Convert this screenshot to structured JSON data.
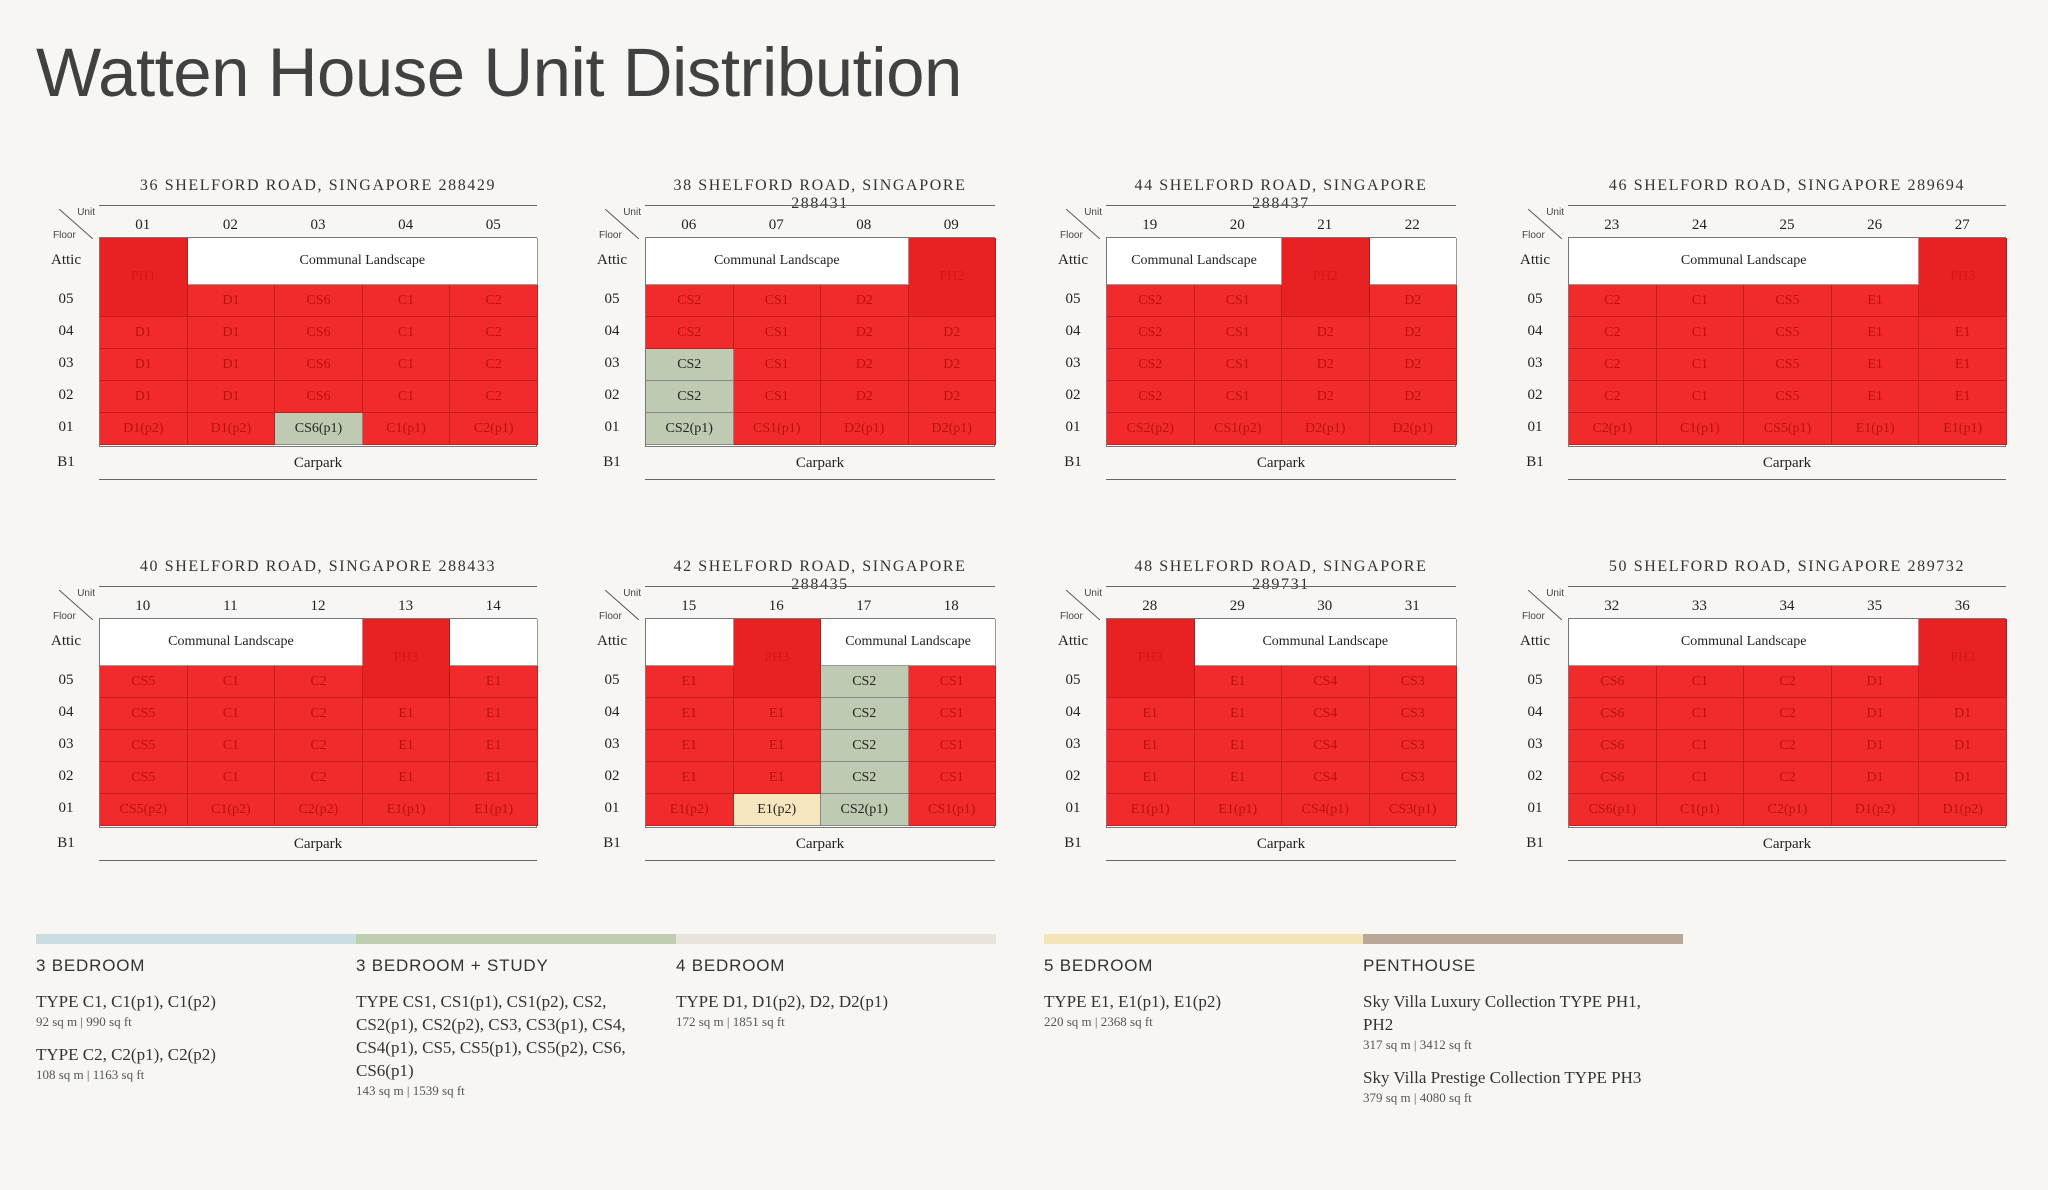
{
  "title": "Watten House Unit Distribution",
  "axis": {
    "unit": "Unit",
    "floor": "Floor"
  },
  "floors": [
    "Attic",
    "05",
    "04",
    "03",
    "02",
    "01",
    "B1"
  ],
  "buildings": [
    {
      "name": "36 SHELFORD ROAD, SINGAPORE 288429",
      "units": [
        "01",
        "02",
        "03",
        "04",
        "05"
      ],
      "attic": [
        {
          "span": 1,
          "label": "PH1",
          "kind": "ph",
          "rows": 2
        },
        {
          "span": 4,
          "label": "Communal Landscape",
          "kind": "white"
        }
      ],
      "rows": [
        [
          {
            "label": "",
            "kind": "skip"
          },
          {
            "label": "D1"
          },
          {
            "label": "CS6"
          },
          {
            "label": "C1"
          },
          {
            "label": "C2"
          }
        ],
        [
          {
            "label": "D1"
          },
          {
            "label": "D1"
          },
          {
            "label": "CS6"
          },
          {
            "label": "C1"
          },
          {
            "label": "C2"
          }
        ],
        [
          {
            "label": "D1"
          },
          {
            "label": "D1"
          },
          {
            "label": "CS6"
          },
          {
            "label": "C1"
          },
          {
            "label": "C2"
          }
        ],
        [
          {
            "label": "D1"
          },
          {
            "label": "D1"
          },
          {
            "label": "CS6"
          },
          {
            "label": "C1"
          },
          {
            "label": "C2"
          }
        ],
        [
          {
            "label": "D1(p2)"
          },
          {
            "label": "D1(p2)"
          },
          {
            "label": "CS6(p1)",
            "kind": "green"
          },
          {
            "label": "C1(p1)"
          },
          {
            "label": "C2(p1)"
          }
        ]
      ],
      "carpark": "Carpark"
    },
    {
      "name": "38 SHELFORD ROAD, SINGAPORE 288431",
      "units": [
        "06",
        "07",
        "08",
        "09"
      ],
      "attic": [
        {
          "span": 3,
          "label": "Communal Landscape",
          "kind": "white"
        },
        {
          "span": 1,
          "label": "PH2",
          "kind": "ph",
          "rows": 2
        }
      ],
      "rows": [
        [
          {
            "label": "CS2"
          },
          {
            "label": "CS1"
          },
          {
            "label": "D2"
          },
          {
            "label": "",
            "kind": "skip"
          }
        ],
        [
          {
            "label": "CS2"
          },
          {
            "label": "CS1"
          },
          {
            "label": "D2"
          },
          {
            "label": "D2"
          }
        ],
        [
          {
            "label": "CS2",
            "kind": "green"
          },
          {
            "label": "CS1"
          },
          {
            "label": "D2"
          },
          {
            "label": "D2"
          }
        ],
        [
          {
            "label": "CS2",
            "kind": "green"
          },
          {
            "label": "CS1"
          },
          {
            "label": "D2"
          },
          {
            "label": "D2"
          }
        ],
        [
          {
            "label": "CS2(p1)",
            "kind": "green"
          },
          {
            "label": "CS1(p1)"
          },
          {
            "label": "D2(p1)"
          },
          {
            "label": "D2(p1)"
          }
        ]
      ],
      "carpark": "Carpark"
    },
    {
      "name": "44 SHELFORD ROAD, SINGAPORE 288437",
      "units": [
        "19",
        "20",
        "21",
        "22"
      ],
      "attic": [
        {
          "span": 2,
          "label": "Communal Landscape",
          "kind": "white"
        },
        {
          "span": 1,
          "label": "PH2",
          "kind": "ph",
          "rows": 2
        },
        {
          "span": 1,
          "label": "",
          "kind": "white"
        }
      ],
      "rows": [
        [
          {
            "label": "CS2"
          },
          {
            "label": "CS1"
          },
          {
            "label": "",
            "kind": "skip"
          },
          {
            "label": "D2"
          }
        ],
        [
          {
            "label": "CS2"
          },
          {
            "label": "CS1"
          },
          {
            "label": "D2"
          },
          {
            "label": "D2"
          }
        ],
        [
          {
            "label": "CS2"
          },
          {
            "label": "CS1"
          },
          {
            "label": "D2"
          },
          {
            "label": "D2"
          }
        ],
        [
          {
            "label": "CS2"
          },
          {
            "label": "CS1"
          },
          {
            "label": "D2"
          },
          {
            "label": "D2"
          }
        ],
        [
          {
            "label": "CS2(p2)"
          },
          {
            "label": "CS1(p2)"
          },
          {
            "label": "D2(p1)"
          },
          {
            "label": "D2(p1)"
          }
        ]
      ],
      "carpark": "Carpark"
    },
    {
      "name": "46 SHELFORD ROAD, SINGAPORE 289694",
      "units": [
        "23",
        "24",
        "25",
        "26",
        "27"
      ],
      "attic": [
        {
          "span": 4,
          "label": "Communal Landscape",
          "kind": "white"
        },
        {
          "span": 1,
          "label": "PH3",
          "kind": "ph",
          "rows": 2
        }
      ],
      "rows": [
        [
          {
            "label": "C2"
          },
          {
            "label": "C1"
          },
          {
            "label": "CS5"
          },
          {
            "label": "E1"
          },
          {
            "label": "",
            "kind": "skip"
          }
        ],
        [
          {
            "label": "C2"
          },
          {
            "label": "C1"
          },
          {
            "label": "CS5"
          },
          {
            "label": "E1"
          },
          {
            "label": "E1"
          }
        ],
        [
          {
            "label": "C2"
          },
          {
            "label": "C1"
          },
          {
            "label": "CS5"
          },
          {
            "label": "E1"
          },
          {
            "label": "E1"
          }
        ],
        [
          {
            "label": "C2"
          },
          {
            "label": "C1"
          },
          {
            "label": "CS5"
          },
          {
            "label": "E1"
          },
          {
            "label": "E1"
          }
        ],
        [
          {
            "label": "C2(p1)"
          },
          {
            "label": "C1(p1)"
          },
          {
            "label": "CS5(p1)"
          },
          {
            "label": "E1(p1)"
          },
          {
            "label": "E1(p1)"
          }
        ]
      ],
      "carpark": "Carpark"
    },
    {
      "name": "40 SHELFORD ROAD, SINGAPORE 288433",
      "units": [
        "10",
        "11",
        "12",
        "13",
        "14"
      ],
      "attic": [
        {
          "span": 3,
          "label": "Communal Landscape",
          "kind": "white"
        },
        {
          "span": 1,
          "label": "PH3",
          "kind": "ph",
          "rows": 2
        },
        {
          "span": 1,
          "label": "",
          "kind": "white"
        }
      ],
      "rows": [
        [
          {
            "label": "CS5"
          },
          {
            "label": "C1"
          },
          {
            "label": "C2"
          },
          {
            "label": "",
            "kind": "skip"
          },
          {
            "label": "E1"
          }
        ],
        [
          {
            "label": "CS5"
          },
          {
            "label": "C1"
          },
          {
            "label": "C2"
          },
          {
            "label": "E1"
          },
          {
            "label": "E1"
          }
        ],
        [
          {
            "label": "CS5"
          },
          {
            "label": "C1"
          },
          {
            "label": "C2"
          },
          {
            "label": "E1"
          },
          {
            "label": "E1"
          }
        ],
        [
          {
            "label": "CS5"
          },
          {
            "label": "C1"
          },
          {
            "label": "C2"
          },
          {
            "label": "E1"
          },
          {
            "label": "E1"
          }
        ],
        [
          {
            "label": "CS5(p2)"
          },
          {
            "label": "C1(p2)"
          },
          {
            "label": "C2(p2)"
          },
          {
            "label": "E1(p1)"
          },
          {
            "label": "E1(p1)"
          }
        ]
      ],
      "carpark": "Carpark"
    },
    {
      "name": "42 SHELFORD ROAD, SINGAPORE 288435",
      "units": [
        "15",
        "16",
        "17",
        "18"
      ],
      "attic": [
        {
          "span": 1,
          "label": "",
          "kind": "white"
        },
        {
          "span": 1,
          "label": "PH3",
          "kind": "ph",
          "rows": 2
        },
        {
          "span": 2,
          "label": "Communal Landscape",
          "kind": "white"
        }
      ],
      "rows": [
        [
          {
            "label": "E1"
          },
          {
            "label": "",
            "kind": "skip"
          },
          {
            "label": "CS2",
            "kind": "green"
          },
          {
            "label": "CS1"
          }
        ],
        [
          {
            "label": "E1"
          },
          {
            "label": "E1"
          },
          {
            "label": "CS2",
            "kind": "green"
          },
          {
            "label": "CS1"
          }
        ],
        [
          {
            "label": "E1"
          },
          {
            "label": "E1"
          },
          {
            "label": "CS2",
            "kind": "green"
          },
          {
            "label": "CS1"
          }
        ],
        [
          {
            "label": "E1"
          },
          {
            "label": "E1"
          },
          {
            "label": "CS2",
            "kind": "green"
          },
          {
            "label": "CS1"
          }
        ],
        [
          {
            "label": "E1(p2)"
          },
          {
            "label": "E1(p2)",
            "kind": "yellow"
          },
          {
            "label": "CS2(p1)",
            "kind": "green"
          },
          {
            "label": "CS1(p1)"
          }
        ]
      ],
      "carpark": "Carpark"
    },
    {
      "name": "48 SHELFORD ROAD, SINGAPORE 289731",
      "units": [
        "28",
        "29",
        "30",
        "31"
      ],
      "attic": [
        {
          "span": 1,
          "label": "PH3",
          "kind": "ph",
          "rows": 2
        },
        {
          "span": 3,
          "label": "Communal Landscape",
          "kind": "white"
        }
      ],
      "rows": [
        [
          {
            "label": "",
            "kind": "skip"
          },
          {
            "label": "E1"
          },
          {
            "label": "CS4"
          },
          {
            "label": "CS3"
          }
        ],
        [
          {
            "label": "E1"
          },
          {
            "label": "E1"
          },
          {
            "label": "CS4"
          },
          {
            "label": "CS3"
          }
        ],
        [
          {
            "label": "E1"
          },
          {
            "label": "E1"
          },
          {
            "label": "CS4"
          },
          {
            "label": "CS3"
          }
        ],
        [
          {
            "label": "E1"
          },
          {
            "label": "E1"
          },
          {
            "label": "CS4"
          },
          {
            "label": "CS3"
          }
        ],
        [
          {
            "label": "E1(p1)"
          },
          {
            "label": "E1(p1)"
          },
          {
            "label": "CS4(p1)"
          },
          {
            "label": "CS3(p1)"
          }
        ]
      ],
      "carpark": "Carpark"
    },
    {
      "name": "50 SHELFORD ROAD, SINGAPORE 289732",
      "units": [
        "32",
        "33",
        "34",
        "35",
        "36"
      ],
      "attic": [
        {
          "span": 4,
          "label": "Communal Landscape",
          "kind": "white"
        },
        {
          "span": 1,
          "label": "PH3",
          "kind": "ph",
          "rows": 2
        }
      ],
      "rows": [
        [
          {
            "label": "CS6"
          },
          {
            "label": "C1"
          },
          {
            "label": "C2"
          },
          {
            "label": "D1"
          },
          {
            "label": "",
            "kind": "skip"
          }
        ],
        [
          {
            "label": "CS6"
          },
          {
            "label": "C1"
          },
          {
            "label": "C2"
          },
          {
            "label": "D1"
          },
          {
            "label": "D1"
          }
        ],
        [
          {
            "label": "CS6"
          },
          {
            "label": "C1"
          },
          {
            "label": "C2"
          },
          {
            "label": "D1"
          },
          {
            "label": "D1"
          }
        ],
        [
          {
            "label": "CS6"
          },
          {
            "label": "C1"
          },
          {
            "label": "C2"
          },
          {
            "label": "D1"
          },
          {
            "label": "D1"
          }
        ],
        [
          {
            "label": "CS6(p1)"
          },
          {
            "label": "C1(p1)"
          },
          {
            "label": "C2(p1)"
          },
          {
            "label": "D1(p2)"
          },
          {
            "label": "D1(p2)"
          }
        ]
      ],
      "carpark": "Carpark"
    }
  ],
  "legend": [
    {
      "color": "#c9dde0",
      "heading": "3 BEDROOM",
      "entries": [
        {
          "type": "TYPE C1, C1(p1), C1(p2)",
          "size": "92 sq m | 990 sq ft"
        },
        {
          "type": "TYPE C2, C2(p1), C2(p2)",
          "size": "108 sq m | 1163 sq ft"
        }
      ]
    },
    {
      "color": "#bfcdb0",
      "heading": "3 BEDROOM + STUDY",
      "entries": [
        {
          "type": "TYPE CS1, CS1(p1), CS1(p2), CS2, CS2(p1), CS2(p2), CS3, CS3(p1), CS4, CS4(p1), CS5, CS5(p1), CS5(p2), CS6, CS6(p1)",
          "size": "143 sq m | 1539 sq ft"
        }
      ]
    },
    {
      "color": "#e8e4dc",
      "heading": "4 BEDROOM",
      "entries": [
        {
          "type": "TYPE D1, D1(p2), D2, D2(p1)",
          "size": "172 sq m | 1851 sq ft"
        }
      ]
    },
    {
      "color": "#f3e5b8",
      "heading": "5 BEDROOM",
      "entries": [
        {
          "type": "TYPE E1, E1(p1), E1(p2)",
          "size": "220 sq m | 2368 sq ft"
        }
      ]
    },
    {
      "color": "#b8a897",
      "heading": "PENTHOUSE",
      "entries": [
        {
          "type": "Sky Villa Luxury Collection TYPE PH1, PH2",
          "size": "317 sq m | 3412 sq ft"
        },
        {
          "type": "Sky Villa Prestige Collection TYPE PH3",
          "size": "379 sq m | 4080 sq ft"
        }
      ]
    }
  ]
}
